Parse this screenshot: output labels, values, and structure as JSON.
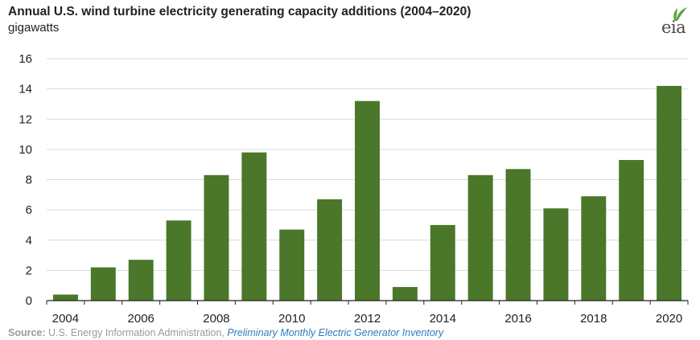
{
  "header": {
    "title": "Annual U.S. wind turbine electricity generating capacity additions (2004–2020)",
    "unit": "gigawatts",
    "logo_text": "eia"
  },
  "source": {
    "label": "Source:",
    "agency": "U.S. Energy Information Administration,",
    "link_text": "Preliminary Monthly Electric Generator Inventory"
  },
  "colors": {
    "bar": "#4a7729",
    "grid": "#d9d9d9",
    "axis": "#222222",
    "logo_accent": "#5aa43c"
  },
  "chart_data": {
    "type": "bar",
    "title": "Annual U.S. wind turbine electricity generating capacity additions (2004–2020)",
    "ylabel": "gigawatts",
    "categories": [
      "2004",
      "2005",
      "2006",
      "2007",
      "2008",
      "2009",
      "2010",
      "2011",
      "2012",
      "2013",
      "2014",
      "2015",
      "2016",
      "2017",
      "2018",
      "2019",
      "2020"
    ],
    "values": [
      0.4,
      2.2,
      2.7,
      5.3,
      8.3,
      9.8,
      4.7,
      6.7,
      13.2,
      0.9,
      5.0,
      8.3,
      8.7,
      6.1,
      6.9,
      9.3,
      14.2
    ],
    "x_tick_labels": [
      "2004",
      "2006",
      "2008",
      "2010",
      "2012",
      "2014",
      "2016",
      "2018",
      "2020"
    ],
    "y_ticks": [
      0,
      2,
      4,
      6,
      8,
      10,
      12,
      14,
      16
    ],
    "ylim": [
      0,
      16
    ],
    "grid": true
  }
}
